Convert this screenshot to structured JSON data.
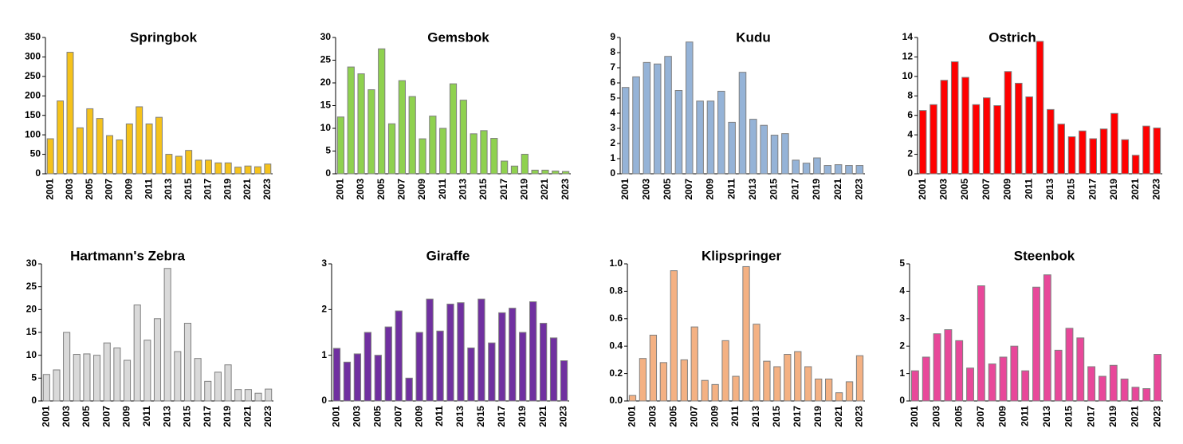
{
  "chart_data": [
    {
      "type": "bar",
      "title": "Springbok",
      "color": "#f5c21b",
      "categories": [
        "2001",
        null,
        "2003",
        null,
        "2005",
        null,
        "2007",
        null,
        "2009",
        null,
        "2011",
        null,
        "2013",
        null,
        "2015",
        null,
        "2017",
        null,
        "2019",
        null,
        "2021",
        null,
        "2023"
      ],
      "values": [
        90,
        187,
        312,
        118,
        167,
        142,
        98,
        87,
        128,
        172,
        128,
        145,
        50,
        45,
        60,
        35,
        35,
        28,
        28,
        17,
        20,
        18,
        25
      ],
      "ylim": [
        0,
        350
      ],
      "yticks": [
        0,
        50,
        100,
        150,
        200,
        250,
        300,
        350
      ]
    },
    {
      "type": "bar",
      "title": "Gemsbok",
      "color": "#8fd14f",
      "categories": [
        "2001",
        null,
        "2003",
        null,
        "2005",
        null,
        "2007",
        null,
        "2009",
        null,
        "2011",
        null,
        "2013",
        null,
        "2015",
        null,
        "2017",
        null,
        "2019",
        null,
        "2021",
        null,
        "2023"
      ],
      "values": [
        12.5,
        23.5,
        22,
        18.5,
        27.5,
        11,
        20.5,
        17,
        7.7,
        12.7,
        10,
        19.8,
        16.2,
        8.8,
        9.5,
        7.8,
        2.8,
        1.7,
        4.3,
        0.8,
        0.8,
        0.6,
        0.5
      ],
      "ylim": [
        0,
        30
      ],
      "yticks": [
        0,
        5,
        10,
        15,
        20,
        25,
        30
      ]
    },
    {
      "type": "bar",
      "title": "Kudu",
      "color": "#95b3d7",
      "categories": [
        "2001",
        null,
        "2003",
        null,
        "2005",
        null,
        "2007",
        null,
        "2009",
        null,
        "2011",
        null,
        "2013",
        null,
        "2015",
        null,
        "2017",
        null,
        "2019",
        null,
        "2021",
        null,
        "2023"
      ],
      "values": [
        5.7,
        6.4,
        7.35,
        7.25,
        7.75,
        5.5,
        8.7,
        4.8,
        4.8,
        5.45,
        3.4,
        6.7,
        3.6,
        3.2,
        2.55,
        2.65,
        0.9,
        0.7,
        1.05,
        0.55,
        0.6,
        0.55,
        0.55
      ],
      "ylim": [
        0,
        9
      ],
      "yticks": [
        0,
        1,
        2,
        3,
        4,
        5,
        6,
        7,
        8,
        9
      ]
    },
    {
      "type": "bar",
      "title": "Ostrich",
      "color": "#ff0000",
      "categories": [
        "2001",
        null,
        "2003",
        null,
        "2005",
        null,
        "2007",
        null,
        "2009",
        null,
        "2011",
        null,
        "2013",
        null,
        "2015",
        null,
        "2017",
        null,
        "2019",
        null,
        "2021",
        null,
        "2023"
      ],
      "values": [
        6.5,
        7.1,
        9.6,
        11.5,
        9.9,
        7.1,
        7.8,
        7.0,
        10.5,
        9.3,
        7.9,
        13.6,
        6.6,
        5.1,
        3.8,
        4.4,
        3.6,
        4.6,
        6.2,
        3.5,
        1.9,
        4.9,
        4.7
      ],
      "ylim": [
        0,
        14
      ],
      "yticks": [
        0,
        2,
        4,
        6,
        8,
        10,
        12,
        14
      ]
    },
    {
      "type": "bar",
      "title": "Hartmann's Zebra",
      "color": "#d9d9d9",
      "categories": [
        "2001",
        null,
        "2003",
        null,
        "2005",
        null,
        "2007",
        null,
        "2009",
        null,
        "2011",
        null,
        "2013",
        null,
        "2015",
        null,
        "2017",
        null,
        "2019",
        null,
        "2021",
        null,
        "2023"
      ],
      "values": [
        5.8,
        6.8,
        15,
        10.2,
        10.3,
        10,
        12.7,
        11.6,
        8.9,
        21,
        13.3,
        18,
        29,
        10.8,
        17,
        9.3,
        4.3,
        6.3,
        7.9,
        2.5,
        2.5,
        1.7,
        2.6
      ],
      "ylim": [
        0,
        30
      ],
      "yticks": [
        0,
        5,
        10,
        15,
        20,
        25,
        30
      ]
    },
    {
      "type": "bar",
      "title": "Giraffe",
      "color": "#7030a0",
      "categories": [
        "2001",
        null,
        "2003",
        null,
        "2005",
        null,
        "2007",
        null,
        "2009",
        null,
        "2011",
        null,
        "2013",
        null,
        "2015",
        null,
        "2017",
        null,
        "2019",
        null,
        "2021",
        null,
        "2023"
      ],
      "values": [
        1.15,
        0.85,
        1.03,
        1.5,
        1.0,
        1.62,
        1.97,
        0.5,
        1.5,
        2.23,
        1.53,
        2.12,
        2.15,
        1.16,
        2.23,
        1.27,
        1.93,
        2.03,
        1.5,
        2.17,
        1.7,
        1.38,
        0.88
      ],
      "ylim": [
        0,
        3
      ],
      "yticks": [
        0,
        1,
        2,
        3
      ]
    },
    {
      "type": "bar",
      "title": "Klipspringer",
      "color": "#f4b183",
      "categories": [
        "2001",
        null,
        "2003",
        null,
        "2005",
        null,
        "2007",
        null,
        "2009",
        null,
        "2011",
        null,
        "2013",
        null,
        "2015",
        null,
        "2017",
        null,
        "2019",
        null,
        "2021",
        null,
        "2023"
      ],
      "values": [
        0.04,
        0.31,
        0.48,
        0.28,
        0.95,
        0.3,
        0.54,
        0.15,
        0.12,
        0.44,
        0.18,
        0.98,
        0.56,
        0.29,
        0.25,
        0.34,
        0.36,
        0.25,
        0.16,
        0.16,
        0.06,
        0.14,
        0.33
      ],
      "ylim": [
        0,
        1
      ],
      "yticks": [
        {
          "value": 0,
          "label": "0.0"
        },
        0.2,
        0.4,
        0.6,
        0.8,
        {
          "value": 1,
          "label": "1.0"
        }
      ]
    },
    {
      "type": "bar",
      "title": "Steenbok",
      "color": "#e8489a",
      "categories": [
        "2001",
        null,
        "2003",
        null,
        "2005",
        null,
        "2007",
        null,
        "2009",
        null,
        "2011",
        null,
        "2013",
        null,
        "2015",
        null,
        "2017",
        null,
        "2019",
        null,
        "2021",
        null,
        "2023"
      ],
      "values": [
        1.1,
        1.6,
        2.45,
        2.6,
        2.2,
        1.2,
        4.2,
        1.35,
        1.6,
        2.0,
        1.1,
        4.15,
        4.6,
        1.85,
        2.65,
        2.3,
        1.25,
        0.9,
        1.3,
        0.8,
        0.5,
        0.45,
        1.7
      ],
      "ylim": [
        0,
        5
      ],
      "yticks": [
        0,
        1,
        2,
        3,
        4,
        5
      ]
    }
  ]
}
